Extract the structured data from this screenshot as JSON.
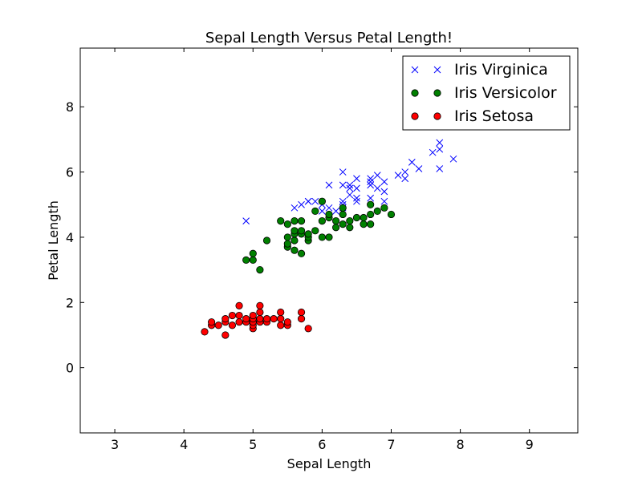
{
  "chart_data": {
    "type": "scatter",
    "title": "Sepal Length Versus Petal Length!",
    "xlabel": "Sepal Length",
    "ylabel": "Petal Length",
    "xlim": [
      2.5,
      9.7
    ],
    "ylim": [
      -2.0,
      9.8
    ],
    "xticks": [
      3,
      4,
      5,
      6,
      7,
      8,
      9
    ],
    "yticks": [
      0,
      2,
      4,
      6,
      8
    ],
    "grid": false,
    "legend_position": "top-right",
    "series": [
      {
        "name": "Iris Virginica",
        "marker": "x",
        "color": "#0000ff",
        "points": [
          [
            4.9,
            4.5
          ],
          [
            5.6,
            4.9
          ],
          [
            5.7,
            5.0
          ],
          [
            5.8,
            5.1
          ],
          [
            5.8,
            5.1
          ],
          [
            5.9,
            5.1
          ],
          [
            6.0,
            4.8
          ],
          [
            6.0,
            5.0
          ],
          [
            6.1,
            4.9
          ],
          [
            6.1,
            5.6
          ],
          [
            6.2,
            4.8
          ],
          [
            6.3,
            4.9
          ],
          [
            6.3,
            5.0
          ],
          [
            6.3,
            5.1
          ],
          [
            6.3,
            5.6
          ],
          [
            6.3,
            6.0
          ],
          [
            6.4,
            5.3
          ],
          [
            6.4,
            5.5
          ],
          [
            6.4,
            5.6
          ],
          [
            6.5,
            5.1
          ],
          [
            6.5,
            5.2
          ],
          [
            6.5,
            5.5
          ],
          [
            6.5,
            5.8
          ],
          [
            6.7,
            5.2
          ],
          [
            6.7,
            5.6
          ],
          [
            6.7,
            5.7
          ],
          [
            6.7,
            5.8
          ],
          [
            6.8,
            5.5
          ],
          [
            6.8,
            5.9
          ],
          [
            6.9,
            5.1
          ],
          [
            6.9,
            5.4
          ],
          [
            6.9,
            5.7
          ],
          [
            7.1,
            5.9
          ],
          [
            7.2,
            5.8
          ],
          [
            7.2,
            6.0
          ],
          [
            7.3,
            6.3
          ],
          [
            7.4,
            6.1
          ],
          [
            7.6,
            6.6
          ],
          [
            7.7,
            6.1
          ],
          [
            7.7,
            6.7
          ],
          [
            7.7,
            6.9
          ],
          [
            7.9,
            6.4
          ]
        ]
      },
      {
        "name": "Iris Versicolor",
        "marker": "o",
        "color": "#008000",
        "points": [
          [
            4.9,
            3.3
          ],
          [
            5.0,
            3.3
          ],
          [
            5.0,
            3.5
          ],
          [
            5.1,
            3.0
          ],
          [
            5.2,
            3.9
          ],
          [
            5.4,
            4.5
          ],
          [
            5.5,
            3.7
          ],
          [
            5.5,
            3.8
          ],
          [
            5.5,
            4.0
          ],
          [
            5.5,
            4.4
          ],
          [
            5.6,
            3.6
          ],
          [
            5.6,
            3.9
          ],
          [
            5.6,
            4.1
          ],
          [
            5.6,
            4.2
          ],
          [
            5.6,
            4.5
          ],
          [
            5.7,
            3.5
          ],
          [
            5.7,
            4.1
          ],
          [
            5.7,
            4.2
          ],
          [
            5.7,
            4.5
          ],
          [
            5.8,
            3.9
          ],
          [
            5.8,
            4.0
          ],
          [
            5.8,
            4.1
          ],
          [
            5.9,
            4.2
          ],
          [
            5.9,
            4.8
          ],
          [
            6.0,
            4.0
          ],
          [
            6.0,
            4.5
          ],
          [
            6.0,
            5.1
          ],
          [
            6.1,
            4.0
          ],
          [
            6.1,
            4.6
          ],
          [
            6.1,
            4.7
          ],
          [
            6.2,
            4.3
          ],
          [
            6.2,
            4.5
          ],
          [
            6.3,
            4.4
          ],
          [
            6.3,
            4.7
          ],
          [
            6.3,
            4.9
          ],
          [
            6.4,
            4.3
          ],
          [
            6.4,
            4.5
          ],
          [
            6.5,
            4.6
          ],
          [
            6.6,
            4.4
          ],
          [
            6.6,
            4.6
          ],
          [
            6.7,
            4.4
          ],
          [
            6.7,
            4.7
          ],
          [
            6.7,
            5.0
          ],
          [
            6.8,
            4.8
          ],
          [
            6.9,
            4.9
          ],
          [
            7.0,
            4.7
          ]
        ]
      },
      {
        "name": "Iris Setosa",
        "marker": "o",
        "color": "#ff0000",
        "points": [
          [
            4.3,
            1.1
          ],
          [
            4.4,
            1.3
          ],
          [
            4.4,
            1.4
          ],
          [
            4.5,
            1.3
          ],
          [
            4.6,
            1.0
          ],
          [
            4.6,
            1.4
          ],
          [
            4.6,
            1.5
          ],
          [
            4.7,
            1.3
          ],
          [
            4.7,
            1.6
          ],
          [
            4.8,
            1.4
          ],
          [
            4.8,
            1.6
          ],
          [
            4.8,
            1.9
          ],
          [
            4.9,
            1.4
          ],
          [
            4.9,
            1.5
          ],
          [
            5.0,
            1.2
          ],
          [
            5.0,
            1.3
          ],
          [
            5.0,
            1.4
          ],
          [
            5.0,
            1.5
          ],
          [
            5.0,
            1.6
          ],
          [
            5.1,
            1.4
          ],
          [
            5.1,
            1.5
          ],
          [
            5.1,
            1.7
          ],
          [
            5.1,
            1.9
          ],
          [
            5.2,
            1.4
          ],
          [
            5.2,
            1.5
          ],
          [
            5.3,
            1.5
          ],
          [
            5.4,
            1.3
          ],
          [
            5.4,
            1.5
          ],
          [
            5.4,
            1.7
          ],
          [
            5.5,
            1.3
          ],
          [
            5.5,
            1.4
          ],
          [
            5.7,
            1.5
          ],
          [
            5.7,
            1.7
          ],
          [
            5.8,
            1.2
          ]
        ]
      }
    ]
  }
}
